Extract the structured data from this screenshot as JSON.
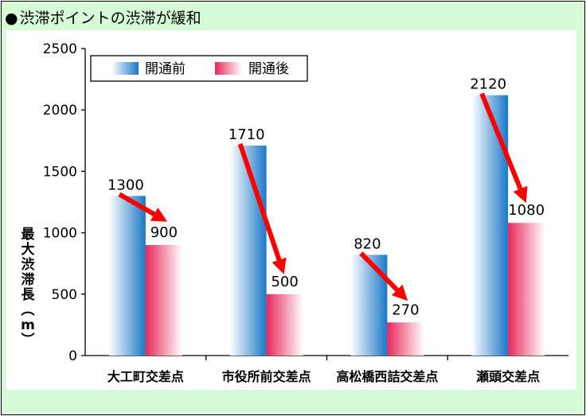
{
  "title": "渋滞ポイントの渋滞が緩和",
  "bullet": "●",
  "chart_data": {
    "type": "bar",
    "title": "渋滞ポイントの渋滞が緩和",
    "ylabel": "最大渋滞長（m）",
    "xlabel": "",
    "ylim": [
      0,
      2500
    ],
    "yticks": [
      0,
      500,
      1000,
      1500,
      2000,
      2500
    ],
    "categories": [
      "大工町交差点",
      "市役所前交差点",
      "高松橋西詰交差点",
      "瀬頭交差点"
    ],
    "series": [
      {
        "name": "開通前",
        "values": [
          1300,
          1710,
          820,
          2120
        ]
      },
      {
        "name": "開通後",
        "values": [
          900,
          500,
          270,
          1080
        ]
      }
    ],
    "legend": "top-left",
    "grid": false,
    "colors": {
      "before": "#1a78c8",
      "after": "#e8285a",
      "arrow": "#ff0000"
    },
    "annotations": "red arrows from before to after values"
  }
}
